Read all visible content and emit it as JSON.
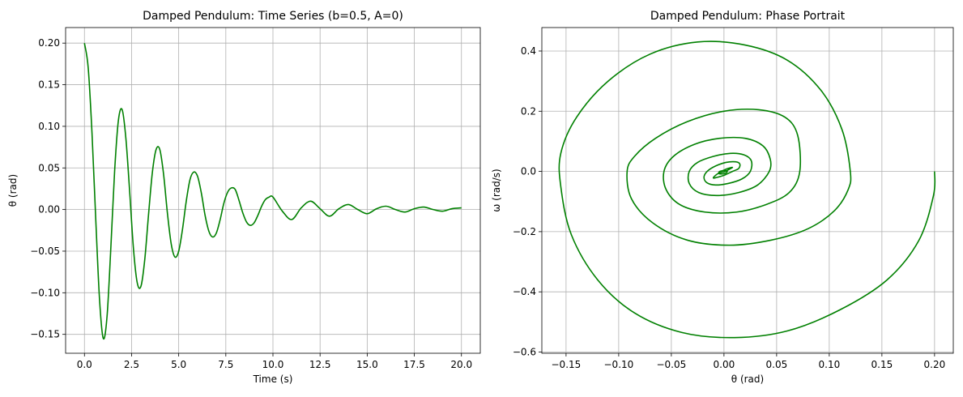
{
  "colors": {
    "line": "#008000",
    "grid": "#b0b0b0",
    "axis": "#000000"
  },
  "chart_data": [
    {
      "type": "line",
      "title": "Damped Pendulum: Time Series (b=0.5, A=0)",
      "xlabel": "Time (s)",
      "ylabel": "θ (rad)",
      "xlim": [
        -1.0,
        21.0
      ],
      "ylim": [
        -0.1727,
        0.2187
      ],
      "grid": true,
      "x_ticks": [
        0.0,
        2.5,
        5.0,
        7.5,
        10.0,
        12.5,
        15.0,
        17.5,
        20.0
      ],
      "x_tick_labels": [
        "0.0",
        "2.5",
        "5.0",
        "7.5",
        "10.0",
        "12.5",
        "15.0",
        "17.5",
        "20.0"
      ],
      "y_ticks": [
        -0.15,
        -0.1,
        -0.05,
        0.0,
        0.05,
        0.1,
        0.15,
        0.2
      ],
      "y_tick_labels": [
        "−0.15",
        "−0.10",
        "−0.05",
        "0.00",
        "0.05",
        "0.10",
        "0.15",
        "0.20"
      ],
      "series": [
        {
          "x": [
            0,
            0.2,
            0.4,
            0.6,
            0.8,
            1.0,
            1.2,
            1.4,
            1.6,
            1.8,
            2.0,
            2.2,
            2.4,
            2.6,
            2.8,
            3.0,
            3.2,
            3.4,
            3.6,
            3.8,
            4.0,
            4.2,
            4.4,
            4.6,
            4.8,
            5.0,
            5.2,
            5.4,
            5.6,
            5.8,
            6.0,
            6.2,
            6.4,
            6.6,
            6.8,
            7.0,
            7.2,
            7.4,
            7.6,
            7.8,
            8.0,
            8.2,
            8.4,
            8.6,
            8.8,
            9.0,
            9.2,
            9.4,
            9.6,
            9.8,
            10.0,
            10.5,
            11.0,
            11.5,
            12.0,
            12.5,
            13.0,
            13.5,
            14.0,
            14.5,
            15.0,
            15.5,
            16.0,
            16.5,
            17.0,
            17.5,
            18.0,
            18.5,
            19.0,
            19.5,
            20.0
          ],
          "y": [
            0.2,
            0.17,
            0.092,
            -0.012,
            -0.108,
            -0.155,
            -0.128,
            -0.046,
            0.046,
            0.107,
            0.12,
            0.085,
            0.021,
            -0.047,
            -0.088,
            -0.092,
            -0.06,
            -0.006,
            0.044,
            0.072,
            0.072,
            0.042,
            -0.004,
            -0.041,
            -0.057,
            -0.05,
            -0.024,
            0.01,
            0.036,
            0.045,
            0.04,
            0.02,
            -0.007,
            -0.026,
            -0.033,
            -0.028,
            -0.012,
            0.008,
            0.021,
            0.026,
            0.024,
            0.011,
            -0.004,
            -0.015,
            -0.019,
            -0.016,
            -0.007,
            0.004,
            0.012,
            0.015,
            0.015,
            -0.002,
            -0.012,
            0.002,
            0.01,
            0.001,
            -0.008,
            0.001,
            0.006,
            0.0,
            -0.005,
            0.001,
            0.004,
            0.0,
            -0.003,
            0.001,
            0.003,
            0.0,
            -0.002,
            0.001,
            0.002
          ]
        }
      ]
    },
    {
      "type": "line",
      "title": "Damped Pendulum: Phase Portrait",
      "xlabel": "θ (rad)",
      "ylabel": "ω (rad/s)",
      "xlim": [
        -0.173,
        0.2178
      ],
      "ylim": [
        -0.604,
        0.478
      ],
      "grid": true,
      "x_ticks": [
        -0.15,
        -0.1,
        -0.05,
        0.0,
        0.05,
        0.1,
        0.15,
        0.2
      ],
      "x_tick_labels": [
        "−0.15",
        "−0.10",
        "−0.05",
        "0.00",
        "0.05",
        "0.10",
        "0.15",
        "0.20"
      ],
      "y_ticks": [
        -0.6,
        -0.4,
        -0.2,
        0.0,
        0.2,
        0.4
      ],
      "y_tick_labels": [
        "−0.6",
        "−0.4",
        "−0.2",
        "0.0",
        "0.2",
        "0.4"
      ],
      "series": [
        {
          "x": [
            0.2,
            0.199,
            0.185,
            0.155,
            0.11,
            0.06,
            0.01,
            -0.04,
            -0.085,
            -0.12,
            -0.145,
            -0.155,
            -0.155,
            -0.14,
            -0.11,
            -0.07,
            -0.025,
            0.02,
            0.06,
            0.092,
            0.112,
            0.12,
            0.118,
            0.105,
            0.08,
            0.045,
            0.005,
            -0.035,
            -0.068,
            -0.088,
            -0.092,
            -0.085,
            -0.065,
            -0.035,
            0.0,
            0.033,
            0.058,
            0.07,
            0.072,
            0.062,
            0.04,
            0.012,
            -0.018,
            -0.042,
            -0.055,
            -0.057,
            -0.048,
            -0.028,
            -0.004,
            0.02,
            0.037,
            0.044,
            0.043,
            0.032,
            0.014,
            -0.007,
            -0.024,
            -0.033,
            -0.033,
            -0.025,
            -0.01,
            0.006,
            0.019,
            0.026,
            0.025,
            0.017,
            0.004,
            -0.008,
            -0.016,
            -0.019,
            -0.016,
            -0.008,
            0.002,
            0.011,
            0.015,
            0.014,
            0.008,
            0.0,
            -0.007,
            -0.01,
            -0.009,
            -0.005,
            0.001,
            0.006,
            0.008,
            0.007,
            0.003,
            -0.001,
            -0.004,
            -0.005,
            -0.004,
            -0.001,
            0.002,
            0.003,
            0.003,
            0.001,
            0.0
          ],
          "y": [
            0.0,
            -0.08,
            -0.23,
            -0.36,
            -0.46,
            -0.53,
            -0.552,
            -0.535,
            -0.47,
            -0.36,
            -0.21,
            -0.05,
            0.06,
            0.18,
            0.3,
            0.39,
            0.43,
            0.42,
            0.37,
            0.27,
            0.14,
            0.0,
            -0.06,
            -0.13,
            -0.19,
            -0.228,
            -0.245,
            -0.228,
            -0.17,
            -0.09,
            0.0,
            0.05,
            0.11,
            0.165,
            0.2,
            0.205,
            0.18,
            0.12,
            0.0,
            -0.07,
            -0.11,
            -0.135,
            -0.135,
            -0.11,
            -0.06,
            0.0,
            0.05,
            0.09,
            0.11,
            0.11,
            0.085,
            0.04,
            0.0,
            -0.045,
            -0.07,
            -0.08,
            -0.07,
            -0.04,
            0.0,
            0.03,
            0.05,
            0.06,
            0.055,
            0.035,
            0.0,
            -0.025,
            -0.04,
            -0.045,
            -0.038,
            -0.02,
            0.0,
            0.018,
            0.03,
            0.032,
            0.025,
            0.01,
            0.0,
            -0.013,
            -0.02,
            -0.022,
            -0.016,
            -0.006,
            0.0,
            0.009,
            0.013,
            0.013,
            0.009,
            0.003,
            0.0,
            -0.005,
            -0.008,
            -0.008,
            -0.005,
            -0.001,
            0.0,
            0.003,
            0.0
          ]
        }
      ]
    }
  ]
}
